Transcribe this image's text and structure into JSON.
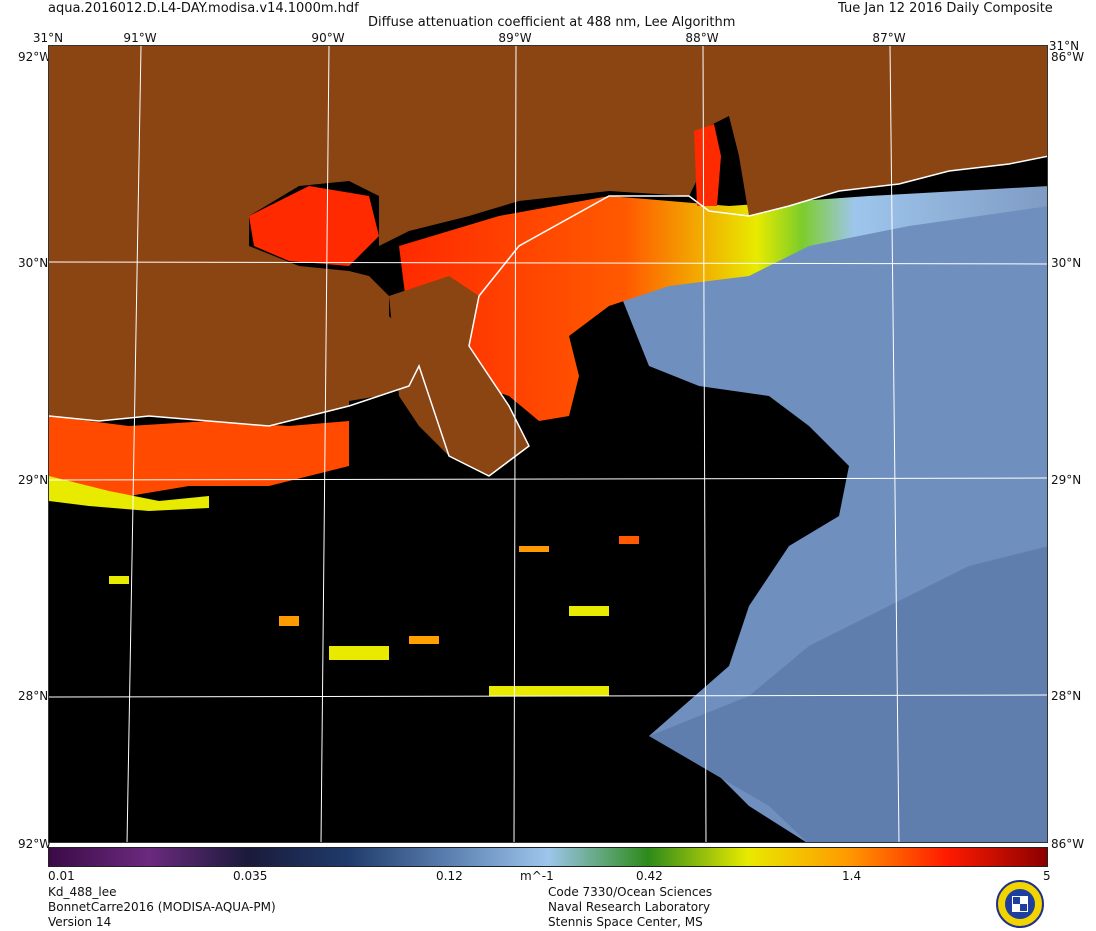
{
  "header": {
    "filename": "aqua.2016012.D.L4-DAY.modisa.v14.1000m.hdf",
    "title": "Diffuse attenuation coefficient at 488 nm, Lee Algorithm",
    "date": "Tue Jan 12 2016 Daily Composite"
  },
  "map": {
    "lon_ticks": [
      "91°W",
      "90°W",
      "89°W",
      "88°W",
      "87°W"
    ],
    "lat_ticks": [
      "31°N",
      "30°N",
      "29°N",
      "28°N"
    ],
    "top_left_corner": "31°N",
    "top_right_corner": "31°N",
    "left_edge_stacked": "92°W",
    "right_edge_stacked": "86°W",
    "bottom_left_corner": "92°W",
    "bottom_right_corner": "86°W",
    "colors": {
      "land": "#8B4513",
      "no_data": "#000000",
      "coast": "#ffffff",
      "grid": "#ffffff"
    }
  },
  "colorbar": {
    "ticks": [
      "0.01",
      "0.035",
      "0.12",
      "0.42",
      "1.4",
      "5"
    ],
    "unit": "m^-1",
    "stops": [
      "#3b0a45",
      "#6b2a7e",
      "#1a1a3a",
      "#1f3b6b",
      "#5a7fb0",
      "#9ec6ec",
      "#2d8a1a",
      "#e8ea00",
      "#ff9a00",
      "#ff1a00",
      "#8b0000"
    ]
  },
  "footer": {
    "left": [
      "Kd_488_lee",
      "BonnetCarre2016 (MODISA-AQUA-PM)",
      "Version 14"
    ],
    "center": [
      "Code 7330/Ocean Sciences",
      "Naval Research Laboratory",
      "Stennis Space Center, MS"
    ]
  }
}
